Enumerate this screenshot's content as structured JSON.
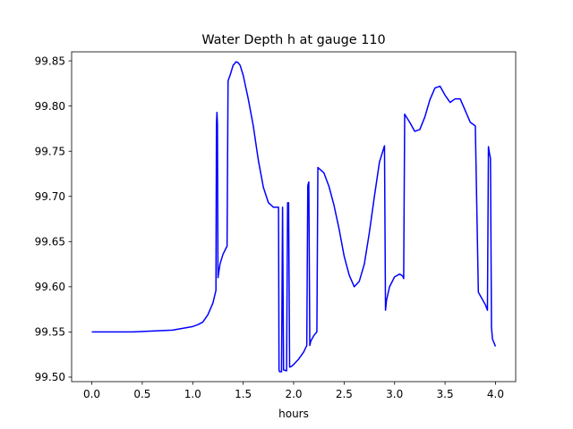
{
  "chart_data": {
    "type": "line",
    "title": "Water Depth h at gauge 110",
    "xlabel": "hours",
    "ylabel": "",
    "xlim": [
      -0.2,
      4.2
    ],
    "ylim": [
      99.495,
      99.86
    ],
    "xticks": [
      0.0,
      0.5,
      1.0,
      1.5,
      2.0,
      2.5,
      3.0,
      3.5,
      4.0
    ],
    "xtick_labels": [
      "0.0",
      "0.5",
      "1.0",
      "1.5",
      "2.0",
      "2.5",
      "3.0",
      "3.5",
      "4.0"
    ],
    "yticks": [
      99.5,
      99.55,
      99.6,
      99.65,
      99.7,
      99.75,
      99.8,
      99.85
    ],
    "ytick_labels": [
      "99.50",
      "99.55",
      "99.60",
      "99.65",
      "99.70",
      "99.75",
      "99.80",
      "99.85"
    ],
    "grid": false,
    "legend": "none",
    "series": [
      {
        "color": "#0000ff",
        "x": [
          0.0,
          0.2,
          0.4,
          0.6,
          0.8,
          0.9,
          1.0,
          1.05,
          1.1,
          1.15,
          1.2,
          1.23,
          1.235,
          1.24,
          1.245,
          1.25,
          1.27,
          1.3,
          1.34,
          1.35,
          1.37,
          1.4,
          1.43,
          1.45,
          1.47,
          1.5,
          1.55,
          1.6,
          1.65,
          1.7,
          1.75,
          1.8,
          1.85,
          1.855,
          1.86,
          1.88,
          1.89,
          1.9,
          1.93,
          1.94,
          1.95,
          1.96,
          1.98,
          2.0,
          2.05,
          2.1,
          2.13,
          2.14,
          2.15,
          2.16,
          2.17,
          2.2,
          2.23,
          2.24,
          2.25,
          2.3,
          2.35,
          2.4,
          2.45,
          2.5,
          2.55,
          2.6,
          2.65,
          2.7,
          2.75,
          2.8,
          2.85,
          2.9,
          2.91,
          2.92,
          2.95,
          3.0,
          3.05,
          3.08,
          3.09,
          3.1,
          3.15,
          3.2,
          3.25,
          3.3,
          3.35,
          3.4,
          3.45,
          3.5,
          3.55,
          3.6,
          3.65,
          3.7,
          3.75,
          3.8,
          3.83,
          3.84,
          3.85,
          3.9,
          3.92,
          3.93,
          3.94,
          3.95,
          3.96,
          3.97,
          4.0
        ],
        "y": [
          99.55,
          99.55,
          99.55,
          99.551,
          99.552,
          99.554,
          99.556,
          99.558,
          99.561,
          99.569,
          99.582,
          99.596,
          99.78,
          99.793,
          99.78,
          99.61,
          99.625,
          99.636,
          99.645,
          99.828,
          99.834,
          99.845,
          99.849,
          99.848,
          99.845,
          99.834,
          99.808,
          99.778,
          99.74,
          99.71,
          99.693,
          99.688,
          99.688,
          99.508,
          99.506,
          99.506,
          99.688,
          99.508,
          99.507,
          99.693,
          99.693,
          99.511,
          99.512,
          99.514,
          99.52,
          99.528,
          99.535,
          99.712,
          99.716,
          99.535,
          99.54,
          99.546,
          99.55,
          99.732,
          99.731,
          99.726,
          99.711,
          99.69,
          99.664,
          99.634,
          99.613,
          99.6,
          99.606,
          99.625,
          99.66,
          99.7,
          99.738,
          99.756,
          99.574,
          99.585,
          99.6,
          99.611,
          99.614,
          99.612,
          99.609,
          99.791,
          99.782,
          99.772,
          99.774,
          99.788,
          99.807,
          99.82,
          99.822,
          99.812,
          99.804,
          99.808,
          99.808,
          99.795,
          99.782,
          99.778,
          99.594,
          99.592,
          99.59,
          99.58,
          99.574,
          99.755,
          99.748,
          99.742,
          99.555,
          99.542,
          99.534
        ]
      }
    ]
  }
}
